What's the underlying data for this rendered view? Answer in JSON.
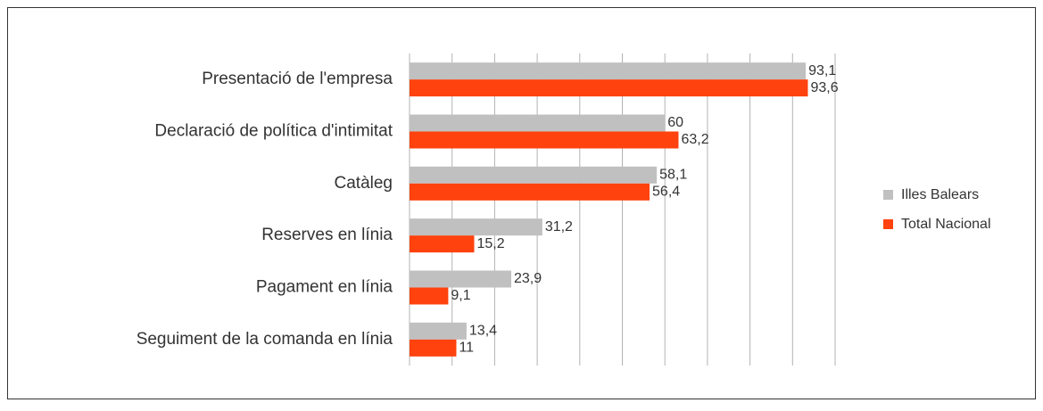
{
  "chart_data": {
    "type": "bar",
    "orientation": "horizontal",
    "categories": [
      "Presentació de l'empresa",
      "Declaració de política d'intimitat",
      "Catàleg",
      "Reserves en línia",
      "Pagament en línia",
      "Seguiment de la comanda en línia"
    ],
    "series": [
      {
        "name": "Illes Balears",
        "color": "#c0c0c0",
        "values": [
          93.1,
          60,
          58.1,
          31.2,
          23.9,
          13.4
        ],
        "value_labels": [
          "93,1",
          "60",
          "58,1",
          "31,2",
          "23,9",
          "13,4"
        ]
      },
      {
        "name": "Total Nacional",
        "color": "#ff420e",
        "values": [
          93.6,
          63.2,
          56.4,
          15.2,
          9.1,
          11
        ],
        "value_labels": [
          "93,6",
          "63,2",
          "56,4",
          "15,2",
          "9,1",
          "11"
        ]
      }
    ],
    "xlim": [
      0,
      100
    ],
    "xticks": [
      0,
      10,
      20,
      30,
      40,
      50,
      60,
      70,
      80,
      90,
      100
    ],
    "grid": true,
    "legend": "right"
  }
}
